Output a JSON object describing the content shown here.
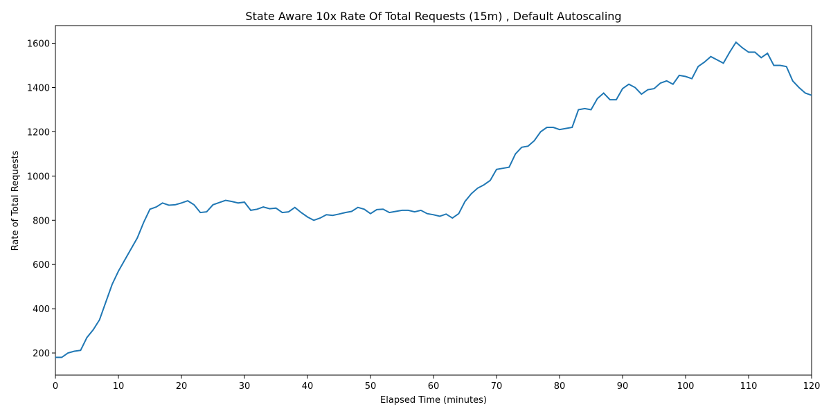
{
  "chart_data": {
    "type": "line",
    "title": "State Aware 10x Rate Of Total Requests (15m) , Default Autoscaling",
    "xlabel": "Elapsed Time (minutes)",
    "ylabel": "Rate of Total Requests",
    "x": [
      0,
      1,
      2,
      3,
      4,
      5,
      6,
      7,
      8,
      9,
      10,
      11,
      12,
      13,
      14,
      15,
      16,
      17,
      18,
      19,
      20,
      21,
      22,
      23,
      24,
      25,
      26,
      27,
      28,
      29,
      30,
      31,
      32,
      33,
      34,
      35,
      36,
      37,
      38,
      39,
      40,
      41,
      42,
      43,
      44,
      45,
      46,
      47,
      48,
      49,
      50,
      51,
      52,
      53,
      54,
      55,
      56,
      57,
      58,
      59,
      60,
      61,
      62,
      63,
      64,
      65,
      66,
      67,
      68,
      69,
      70,
      71,
      72,
      73,
      74,
      75,
      76,
      77,
      78,
      79,
      80,
      81,
      82,
      83,
      84,
      85,
      86,
      87,
      88,
      89,
      90,
      91,
      92,
      93,
      94,
      95,
      96,
      97,
      98,
      99,
      100,
      101,
      102,
      103,
      104,
      105,
      106,
      107,
      108,
      109,
      110,
      111,
      112,
      113,
      114,
      115,
      116,
      117,
      118,
      119,
      120
    ],
    "series": [
      {
        "name": "Rate of Total Requests",
        "color": "#1f77b4",
        "values": [
          180,
          180,
          200,
          208,
          212,
          270,
          305,
          350,
          430,
          510,
          570,
          620,
          670,
          720,
          790,
          850,
          860,
          878,
          868,
          870,
          878,
          888,
          870,
          835,
          838,
          870,
          880,
          890,
          885,
          878,
          882,
          845,
          850,
          860,
          852,
          855,
          835,
          838,
          858,
          835,
          815,
          800,
          810,
          825,
          822,
          828,
          835,
          840,
          858,
          850,
          830,
          848,
          850,
          835,
          840,
          845,
          845,
          838,
          845,
          830,
          825,
          818,
          828,
          810,
          830,
          885,
          920,
          945,
          960,
          980,
          1030,
          1035,
          1040,
          1100,
          1130,
          1135,
          1160,
          1200,
          1220,
          1220,
          1210,
          1215,
          1220,
          1300,
          1305,
          1300,
          1350,
          1375,
          1345,
          1345,
          1395,
          1415,
          1400,
          1370,
          1390,
          1395,
          1420,
          1430,
          1415,
          1455,
          1450,
          1440,
          1495,
          1515,
          1540,
          1525,
          1510,
          1560,
          1605,
          1580,
          1560,
          1560,
          1535,
          1555,
          1500,
          1500,
          1495,
          1430,
          1400,
          1375,
          1365
        ]
      }
    ],
    "xlim": [
      0,
      120
    ],
    "xticks": [
      0,
      10,
      20,
      30,
      40,
      50,
      60,
      70,
      80,
      90,
      100,
      110,
      120
    ],
    "ylim": [
      100,
      1680
    ],
    "yticks": [
      200,
      400,
      600,
      800,
      1000,
      1200,
      1400,
      1600
    ]
  }
}
